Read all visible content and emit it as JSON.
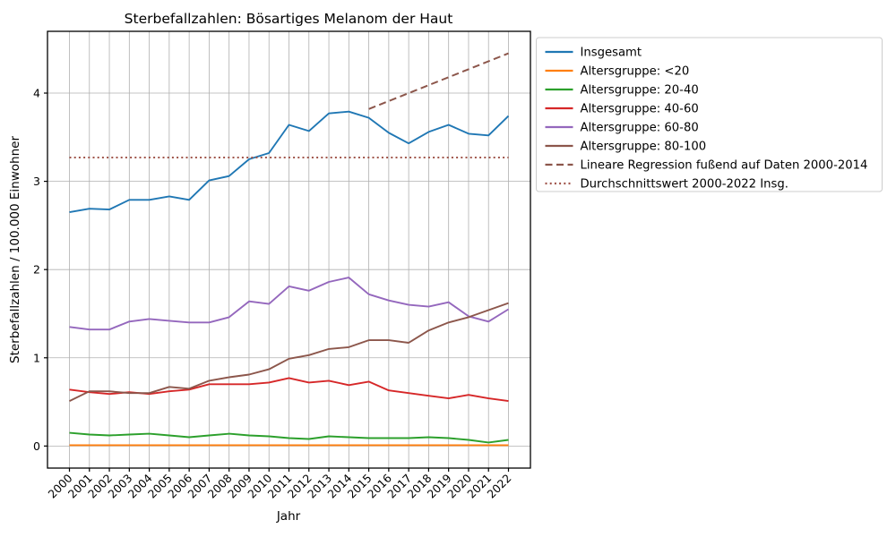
{
  "title": "Sterbefallzahlen: Bösartiges Melanom der Haut",
  "xlabel": "Jahr",
  "ylabel": "Sterbefallzahlen / 100.000 Einwohner",
  "chart_data": {
    "type": "line",
    "title": "Sterbefallzahlen: Bösartiges Melanom der Haut",
    "xlabel": "Jahr",
    "ylabel": "Sterbefallzahlen / 100.000 Einwohner",
    "x": [
      2000,
      2001,
      2002,
      2003,
      2004,
      2005,
      2006,
      2007,
      2008,
      2009,
      2010,
      2011,
      2012,
      2013,
      2014,
      2015,
      2016,
      2017,
      2018,
      2019,
      2020,
      2021,
      2022
    ],
    "yticks": [
      0,
      1,
      2,
      3,
      4
    ],
    "ylim": [
      -0.25,
      4.7
    ],
    "x_margin_years": 1.1,
    "grid": true,
    "legend_position": "upper-right",
    "grid_color": "#b0b0b0",
    "series": [
      {
        "name": "Insgesamt",
        "color": "#1f77b4",
        "style": "solid",
        "values": [
          2.65,
          2.69,
          2.68,
          2.79,
          2.79,
          2.83,
          2.79,
          3.01,
          3.06,
          3.25,
          3.32,
          3.64,
          3.57,
          3.77,
          3.79,
          3.72,
          3.55,
          3.43,
          3.56,
          3.64,
          3.54,
          3.52,
          3.74
        ]
      },
      {
        "name": "Altersgruppe: <20",
        "color": "#ff7f0e",
        "style": "solid",
        "values": [
          0.01,
          0.01,
          0.01,
          0.01,
          0.01,
          0.01,
          0.01,
          0.01,
          0.01,
          0.01,
          0.01,
          0.01,
          0.01,
          0.01,
          0.01,
          0.01,
          0.01,
          0.01,
          0.01,
          0.01,
          0.01,
          0.01,
          0.01
        ]
      },
      {
        "name": "Altersgruppe: 20-40",
        "color": "#2ca02c",
        "style": "solid",
        "values": [
          0.15,
          0.13,
          0.12,
          0.13,
          0.14,
          0.12,
          0.1,
          0.12,
          0.14,
          0.12,
          0.11,
          0.09,
          0.08,
          0.11,
          0.1,
          0.09,
          0.09,
          0.09,
          0.1,
          0.09,
          0.07,
          0.04,
          0.07
        ]
      },
      {
        "name": "Altersgruppe: 40-60",
        "color": "#d62728",
        "style": "solid",
        "values": [
          0.64,
          0.61,
          0.59,
          0.61,
          0.59,
          0.62,
          0.64,
          0.7,
          0.7,
          0.7,
          0.72,
          0.77,
          0.72,
          0.74,
          0.69,
          0.73,
          0.63,
          0.6,
          0.57,
          0.54,
          0.58,
          0.54,
          0.51
        ]
      },
      {
        "name": "Altersgruppe: 60-80",
        "color": "#9467bd",
        "style": "solid",
        "values": [
          1.35,
          1.32,
          1.32,
          1.41,
          1.44,
          1.42,
          1.4,
          1.4,
          1.46,
          1.64,
          1.61,
          1.81,
          1.76,
          1.86,
          1.91,
          1.72,
          1.65,
          1.6,
          1.58,
          1.63,
          1.47,
          1.41,
          1.55
        ]
      },
      {
        "name": "Altersgruppe: 80-100",
        "color": "#8c564b",
        "style": "solid",
        "values": [
          0.51,
          0.62,
          0.62,
          0.6,
          0.6,
          0.67,
          0.65,
          0.74,
          0.78,
          0.81,
          0.87,
          0.99,
          1.03,
          1.1,
          1.12,
          1.2,
          1.2,
          1.17,
          1.31,
          1.4,
          1.46,
          1.54,
          1.62
        ]
      },
      {
        "name": "Lineare Regression fußend auf Daten 2000-2014",
        "color": "#8c564b",
        "style": "dashed",
        "x": [
          2015,
          2022
        ],
        "values": [
          3.82,
          4.45
        ]
      },
      {
        "name": "Durchschnittswert 2000-2022 Insg.",
        "color": "#a0554b",
        "style": "dotted",
        "x": [
          2000,
          2022
        ],
        "values": [
          3.27,
          3.27
        ]
      }
    ]
  }
}
